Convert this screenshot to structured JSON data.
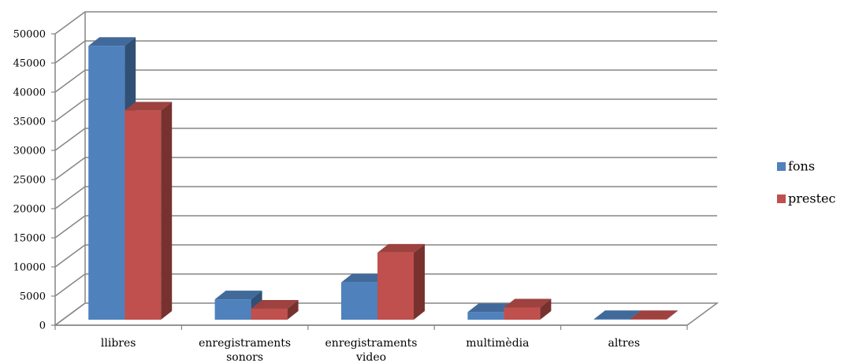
{
  "chart_data": {
    "type": "bar",
    "title": "",
    "xlabel": "",
    "ylabel": "",
    "ylim": [
      0,
      50000
    ],
    "y_ticks": [
      "0",
      "5000",
      "10000",
      "15000",
      "20000",
      "25000",
      "30000",
      "35000",
      "40000",
      "45000",
      "50000"
    ],
    "categories": [
      [
        "llibres"
      ],
      [
        "enregistraments",
        "sonors"
      ],
      [
        "enregistraments",
        "video"
      ],
      [
        "multimèdia"
      ],
      [
        "altres"
      ]
    ],
    "series": [
      {
        "name": "fons",
        "color": "#4F81BD",
        "values": [
          47000,
          3500,
          6400,
          1300,
          100
        ]
      },
      {
        "name": "prestec",
        "color": "#C0504D",
        "values": [
          35900,
          1900,
          11500,
          2100,
          100
        ]
      }
    ],
    "grid": true,
    "legend_position": "right",
    "style": "3d-column"
  }
}
